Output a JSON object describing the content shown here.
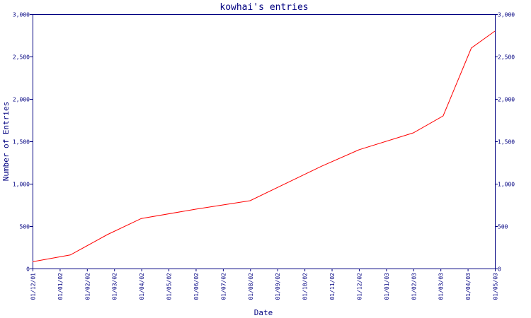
{
  "chart_data": {
    "type": "line",
    "title": "kowhai's entries",
    "xlabel": "Date",
    "ylabel": "Number of Entries",
    "ylim": [
      0,
      3000
    ],
    "y_ticks": [
      "0",
      "500",
      "1,000",
      "1,500",
      "2,000",
      "2,500",
      "3,000"
    ],
    "x_ticks": [
      "01/12/01",
      "01/01/02",
      "01/02/02",
      "01/03/02",
      "01/04/02",
      "01/05/02",
      "01/06/02",
      "01/07/02",
      "01/08/02",
      "01/09/02",
      "01/10/02",
      "01/11/02",
      "01/12/02",
      "01/01/03",
      "01/02/03",
      "01/03/03",
      "01/04/03",
      "01/05/03"
    ],
    "grid": false,
    "line_color": "#ff0000",
    "axis_color": "#000080",
    "series": [
      {
        "x": [
          "2001-12-01",
          "2002-01-13",
          "2002-02-22",
          "2002-04-01",
          "2002-06-01",
          "2002-08-01",
          "2002-10-20",
          "2002-12-01",
          "2003-02-01",
          "2003-03-04",
          "2003-04-05",
          "2003-05-01"
        ],
        "values": [
          80,
          160,
          400,
          590,
          700,
          800,
          1205,
          1400,
          1600,
          1800,
          2600,
          2800
        ]
      }
    ]
  }
}
